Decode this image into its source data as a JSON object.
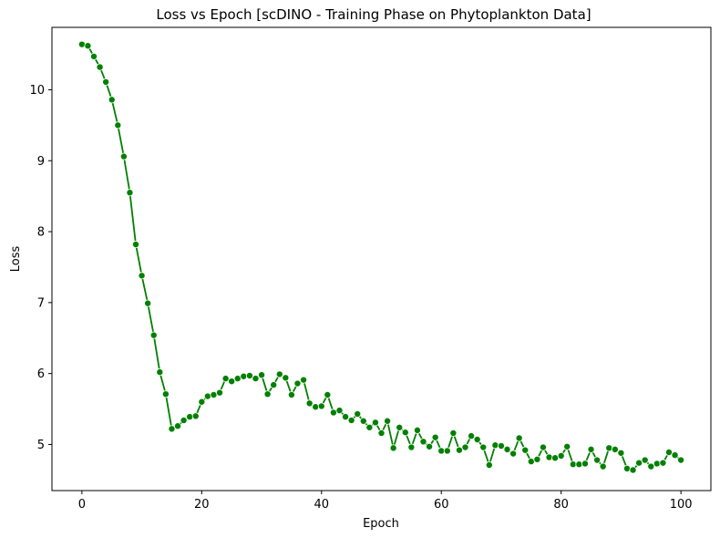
{
  "chart_data": {
    "type": "line",
    "title": "Loss vs Epoch [scDINO - Training Phase on Phytoplankton Data]",
    "xlabel": "Epoch",
    "ylabel": "Loss",
    "xlim": [
      -5,
      105
    ],
    "ylim": [
      4.35,
      10.88
    ],
    "xticks": [
      0,
      20,
      40,
      60,
      80,
      100
    ],
    "yticks": [
      5,
      6,
      7,
      8,
      9,
      10
    ],
    "grid": false,
    "legend": "none",
    "line_color": "#008000",
    "marker": "circle",
    "series": [
      {
        "x": [
          0,
          1,
          2,
          3,
          4,
          5,
          6,
          7,
          8,
          9,
          10,
          11,
          12,
          13,
          14,
          15,
          16,
          17,
          18,
          19,
          20,
          21,
          22,
          23,
          24,
          25,
          26,
          27,
          28,
          29,
          30,
          31,
          32,
          33,
          34,
          35,
          36,
          37,
          38,
          39,
          40,
          41,
          42,
          43,
          44,
          45,
          46,
          47,
          48,
          49,
          50,
          51,
          52,
          53,
          54,
          55,
          56,
          57,
          58,
          59,
          60,
          61,
          62,
          63,
          64,
          65,
          66,
          67,
          68,
          69,
          70,
          71,
          72,
          73,
          74,
          75,
          76,
          77,
          78,
          79,
          80,
          81,
          82,
          83,
          84,
          85,
          86,
          87,
          88,
          89,
          90,
          91,
          92,
          93,
          94,
          95,
          96,
          97,
          98,
          99,
          100
        ],
        "values": [
          10.64,
          10.62,
          10.47,
          10.32,
          10.11,
          9.86,
          9.5,
          9.06,
          8.55,
          7.82,
          7.38,
          6.99,
          6.54,
          6.02,
          5.71,
          5.22,
          5.26,
          5.34,
          5.39,
          5.4,
          5.6,
          5.68,
          5.7,
          5.73,
          5.93,
          5.89,
          5.93,
          5.96,
          5.97,
          5.93,
          5.98,
          5.71,
          5.84,
          5.99,
          5.94,
          5.7,
          5.86,
          5.91,
          5.58,
          5.53,
          5.54,
          5.7,
          5.45,
          5.48,
          5.39,
          5.34,
          5.43,
          5.33,
          5.24,
          5.31,
          5.16,
          5.33,
          4.95,
          5.24,
          5.17,
          4.96,
          5.2,
          5.04,
          4.97,
          5.1,
          4.91,
          4.91,
          5.16,
          4.92,
          4.96,
          5.12,
          5.07,
          4.96,
          4.71,
          4.99,
          4.98,
          4.93,
          4.87,
          5.09,
          4.92,
          4.76,
          4.79,
          4.96,
          4.82,
          4.81,
          4.84,
          4.97,
          4.72,
          4.72,
          4.73,
          4.93,
          4.78,
          4.69,
          4.95,
          4.93,
          4.88,
          4.66,
          4.64,
          4.74,
          4.78,
          4.69,
          4.73,
          4.74,
          4.89,
          4.85,
          4.78
        ]
      }
    ]
  }
}
